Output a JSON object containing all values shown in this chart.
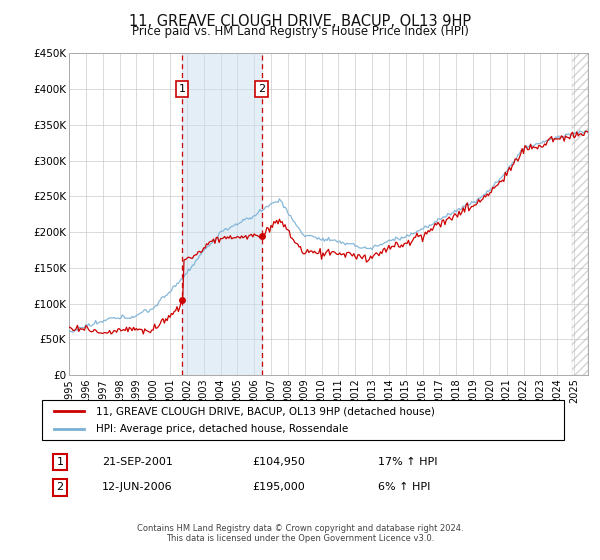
{
  "title": "11, GREAVE CLOUGH DRIVE, BACUP, OL13 9HP",
  "subtitle": "Price paid vs. HM Land Registry's House Price Index (HPI)",
  "ylim": [
    0,
    450000
  ],
  "yticks": [
    0,
    50000,
    100000,
    150000,
    200000,
    250000,
    300000,
    350000,
    400000,
    450000
  ],
  "ytick_labels": [
    "£0",
    "£50K",
    "£100K",
    "£150K",
    "£200K",
    "£250K",
    "£300K",
    "£350K",
    "£400K",
    "£450K"
  ],
  "xlim_start": 1995.0,
  "xlim_end": 2025.83,
  "sale1_year": 2001.72,
  "sale1_price": 104950,
  "sale1_label": "1",
  "sale1_date": "21-SEP-2001",
  "sale1_price_str": "£104,950",
  "sale1_hpi": "17% ↑ HPI",
  "sale2_year": 2006.44,
  "sale2_price": 195000,
  "sale2_label": "2",
  "sale2_date": "12-JUN-2006",
  "sale2_price_str": "£195,000",
  "sale2_hpi": "6% ↑ HPI",
  "shade_color": "#c8dff0",
  "shade_alpha": 0.5,
  "vline_color": "#cc0000",
  "hpi_color": "#7ab0d4",
  "price_color": "#cc0000",
  "marker_color": "#cc0000",
  "legend_label_price": "11, GREAVE CLOUGH DRIVE, BACUP, OL13 9HP (detached house)",
  "legend_label_hpi": "HPI: Average price, detached house, Rossendale",
  "footer1": "Contains HM Land Registry data © Crown copyright and database right 2024.",
  "footer2": "This data is licensed under the Open Government Licence v3.0.",
  "bg_color": "#ffffff",
  "grid_color": "#cccccc"
}
